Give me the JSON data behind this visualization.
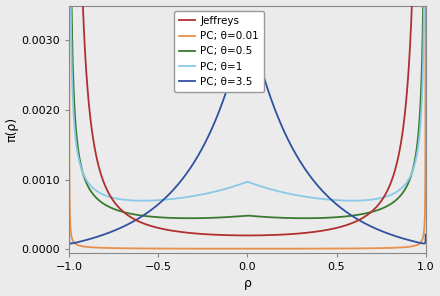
{
  "title": "",
  "xlabel": "ρ",
  "ylabel": "π(ρ)",
  "xlim": [
    -1.0,
    1.0
  ],
  "ylim": [
    -5e-05,
    0.0035
  ],
  "yticks": [
    0.0,
    0.001,
    0.002,
    0.003
  ],
  "xticks": [
    -1.0,
    -0.5,
    0.0,
    0.5,
    1.0
  ],
  "bg_color": "#ebebeb",
  "lines": [
    {
      "label": "Jeffreys",
      "color": "#b03030",
      "lw": 1.3
    },
    {
      "label": "PC; θ=0.01",
      "color": "#e8904a",
      "lw": 1.3
    },
    {
      "label": "PC; θ=0.5",
      "color": "#3a7a30",
      "lw": 1.3
    },
    {
      "label": "PC; θ=1",
      "color": "#88c8e8",
      "lw": 1.3
    },
    {
      "label": "PC; θ=3.5",
      "color": "#3050a0",
      "lw": 1.3
    }
  ],
  "thetas": [
    0.01,
    0.5,
    1.0,
    3.5
  ],
  "legend_fontsize": 7.5,
  "axis_fontsize": 9,
  "tick_fontsize": 8
}
